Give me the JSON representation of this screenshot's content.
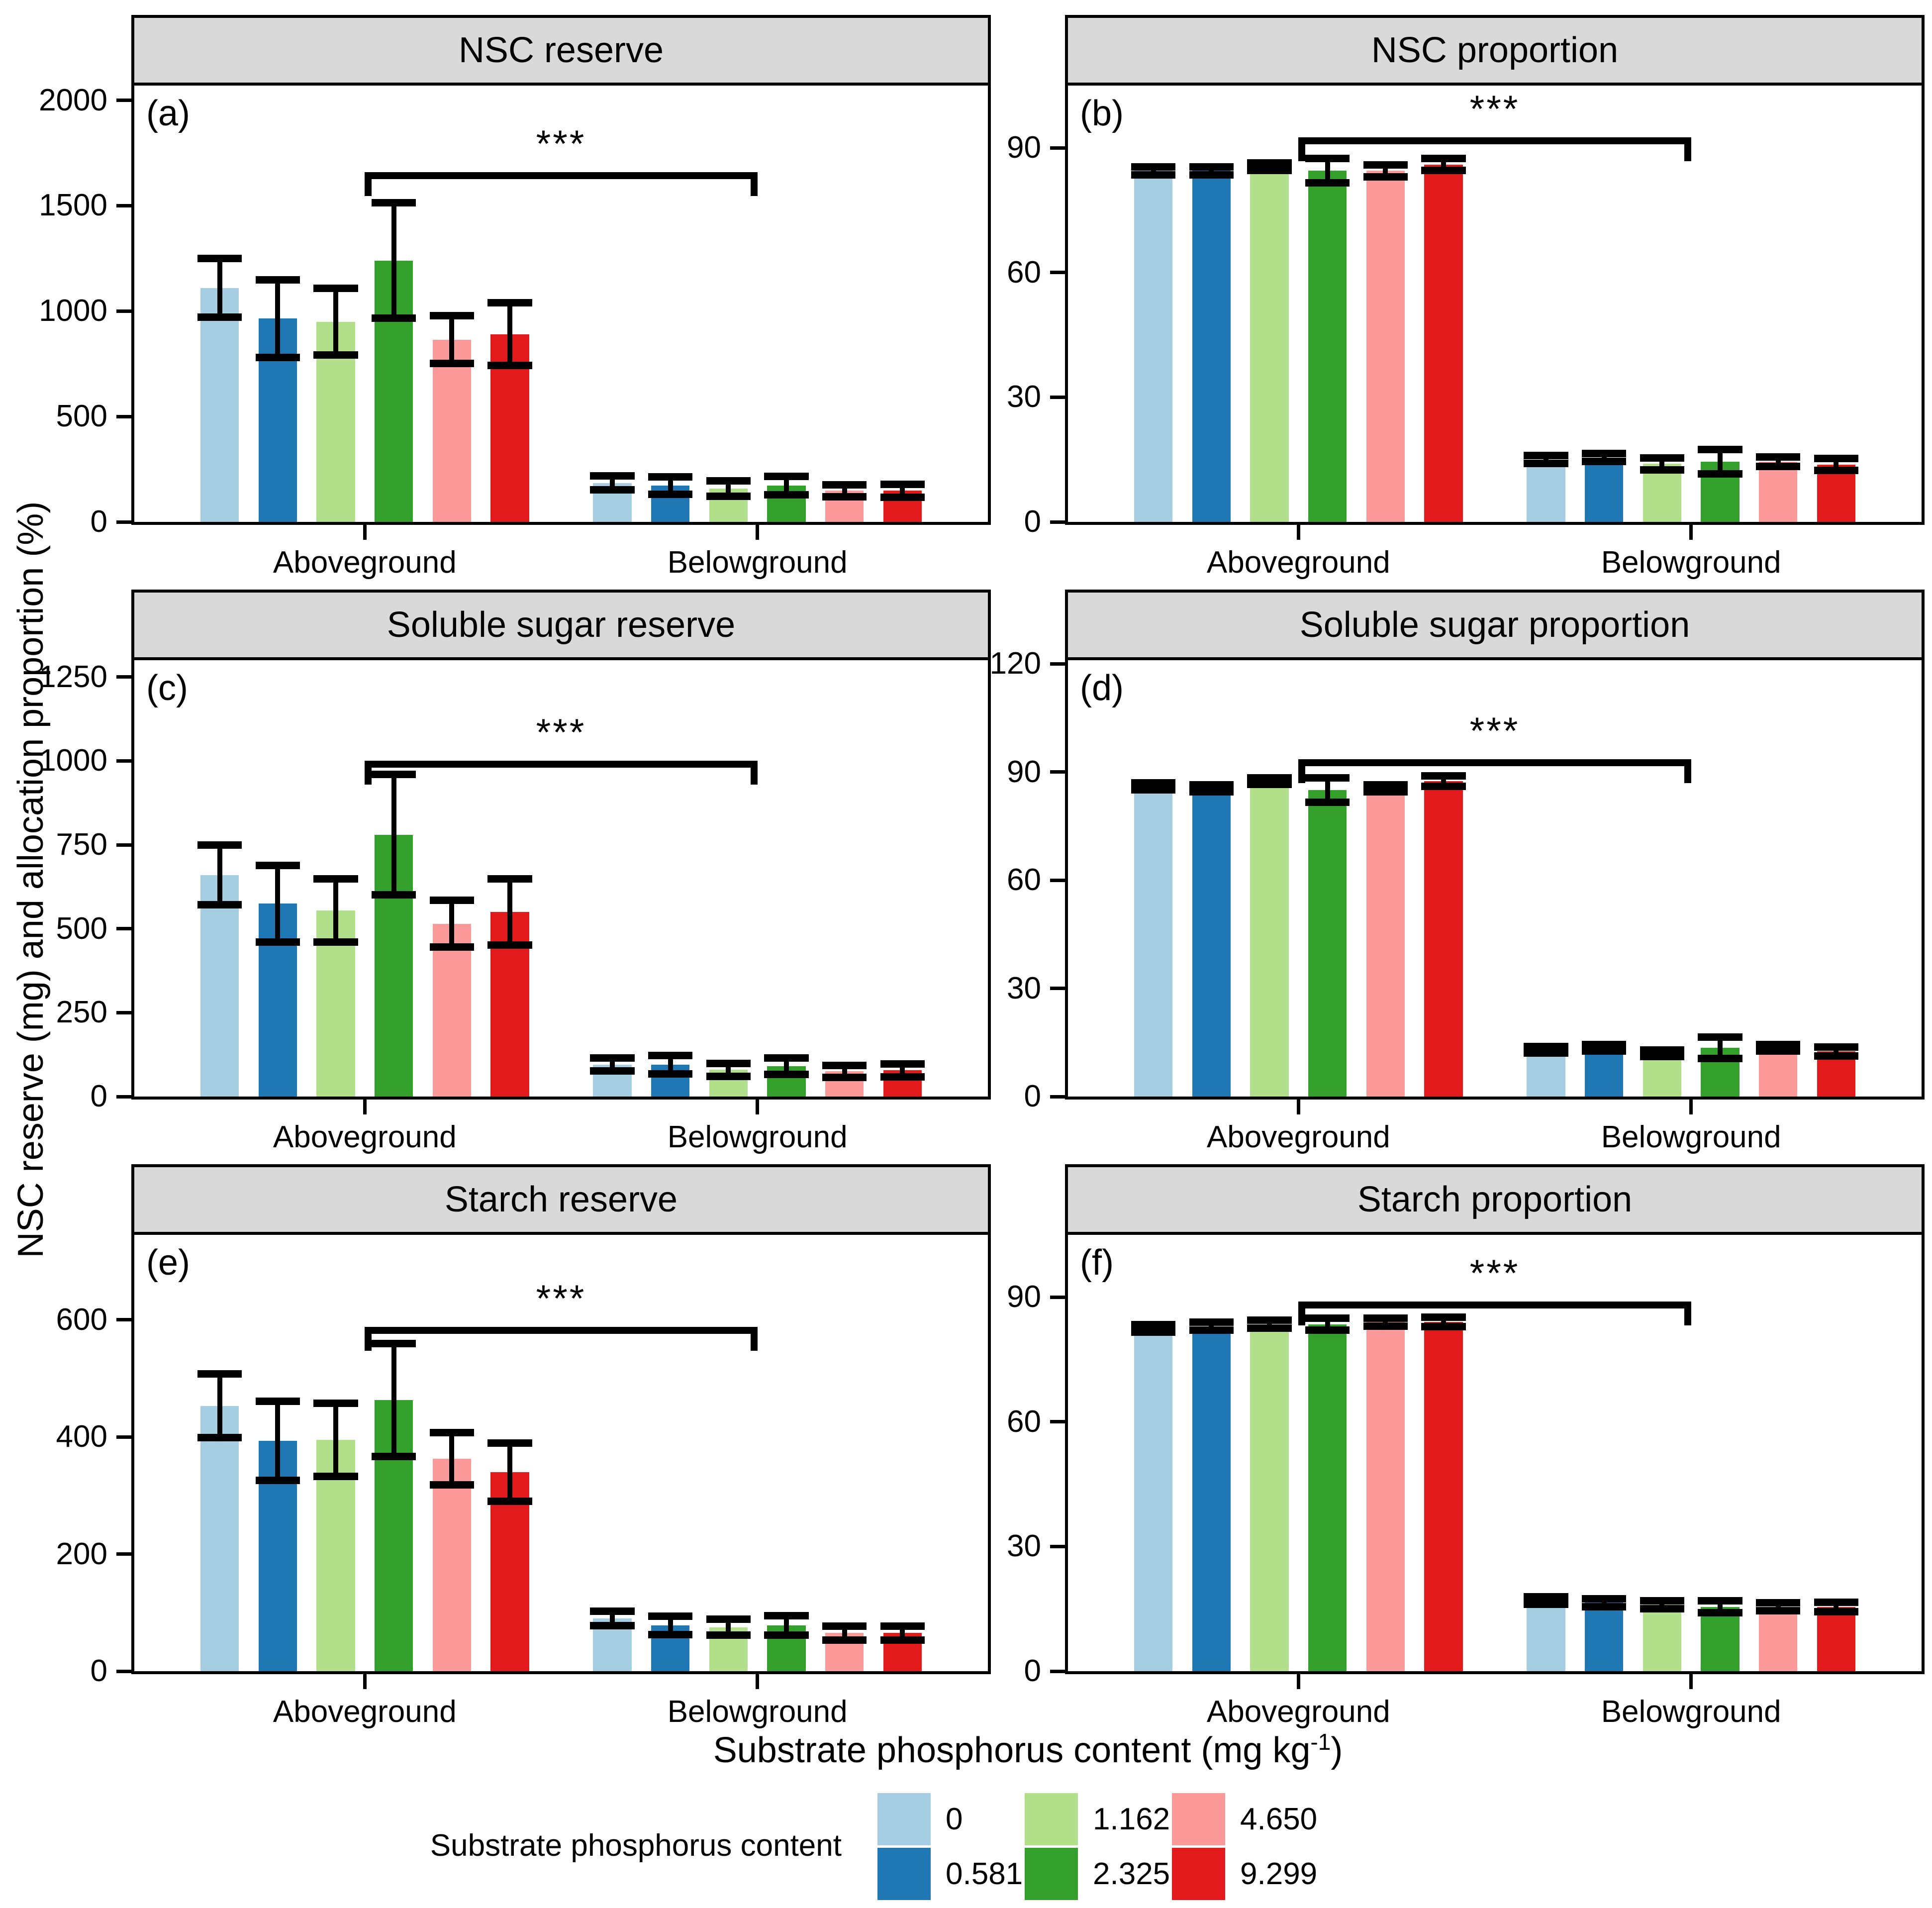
{
  "figure": {
    "description": "Six-panel faceted bar chart of NSC, soluble sugar and starch reserves (mg) and allocation proportions (%) in aboveground and belowground parts under six substrate phosphorus levels"
  },
  "legend": {
    "title": "Substrate phosphorus content"
  },
  "chart_data": {
    "type": "bar",
    "subtype": "grouped-bar-with-error-bars-faceted",
    "x_axis_title": "Substrate phosphorus content (mg kg⁻¹)",
    "x_axis_title_parts": {
      "main": "Substrate phosphorus content (mg kg",
      "sup": "-1",
      "end": ")"
    },
    "y_axis_title": "NSC reserve (mg) and allocation proportion (%)",
    "categories": [
      "Aboveground",
      "Belowground"
    ],
    "series": [
      {
        "label": "0",
        "color": "#A6CEE3"
      },
      {
        "label": "0.581",
        "color": "#1F78B4"
      },
      {
        "label": "1.162",
        "color": "#B2DF8A"
      },
      {
        "label": "2.325",
        "color": "#33A02C"
      },
      {
        "label": "4.650",
        "color": "#FB9A99"
      },
      {
        "label": "9.299",
        "color": "#E31A1C"
      }
    ],
    "grid": false,
    "legend_position": "bottom",
    "panels": [
      {
        "id": "a",
        "panel_label": "(a)",
        "title": "NSC reserve",
        "ylim": [
          0,
          2070
        ],
        "yticks": [
          0,
          500,
          1000,
          1500,
          2000
        ],
        "groups": [
          {
            "category": "Aboveground",
            "values": [
              1110,
              965,
              950,
              1240,
              865,
              890
            ],
            "errors": [
              140,
              185,
              160,
              275,
              115,
              150
            ]
          },
          {
            "category": "Belowground",
            "values": [
              185,
              172,
              158,
              172,
              148,
              148
            ],
            "errors": [
              35,
              42,
              38,
              45,
              30,
              32
            ]
          }
        ],
        "significance": {
          "label": "***",
          "bracket_y": 1660
        }
      },
      {
        "id": "b",
        "panel_label": "(b)",
        "title": "NSC proportion",
        "ylim": [
          0,
          105
        ],
        "yticks": [
          0,
          30,
          60,
          90
        ],
        "groups": [
          {
            "category": "Aboveground",
            "values": [
              84.5,
              84.5,
              85.5,
              84.5,
              84.5,
              86
            ],
            "errors": [
              1,
              1,
              1,
              3,
              1.5,
              1.5
            ]
          },
          {
            "category": "Belowground",
            "values": [
              15,
              15.5,
              14,
              14.5,
              14.5,
              13.8
            ],
            "errors": [
              1,
              1,
              1.5,
              3,
              1.2,
              1.5
            ]
          }
        ],
        "significance": {
          "label": "***",
          "bracket_y": 92.5
        }
      },
      {
        "id": "c",
        "panel_label": "(c)",
        "title": "Soluble sugar reserve",
        "ylim": [
          0,
          1300
        ],
        "yticks": [
          0,
          250,
          500,
          750,
          1000,
          1250
        ],
        "groups": [
          {
            "category": "Aboveground",
            "values": [
              660,
              575,
              555,
              780,
              515,
              550
            ],
            "errors": [
              90,
              115,
              95,
              180,
              70,
              100
            ]
          },
          {
            "category": "Belowground",
            "values": [
              95,
              95,
              80,
              90,
              75,
              78
            ],
            "errors": [
              20,
              28,
              20,
              25,
              18,
              20
            ]
          }
        ],
        "significance": {
          "label": "***",
          "bracket_y": 1000
        }
      },
      {
        "id": "d",
        "panel_label": "(d)",
        "title": "Soluble sugar proportion",
        "ylim": [
          0,
          121
        ],
        "yticks": [
          0,
          30,
          60,
          90,
          120
        ],
        "groups": [
          {
            "category": "Aboveground",
            "values": [
              86,
              85.5,
              87.5,
              85,
              85.5,
              87.5
            ],
            "errors": [
              1,
              1,
              1,
              3.5,
              1,
              1.5
            ]
          },
          {
            "category": "Belowground",
            "values": [
              13,
              13.5,
              12,
              13.5,
              13.5,
              12.5
            ],
            "errors": [
              1,
              1,
              1,
              3,
              1,
              1.3
            ]
          }
        ],
        "significance": {
          "label": "***",
          "bracket_y": 93.5
        }
      },
      {
        "id": "e",
        "panel_label": "(e)",
        "title": "Starch reserve",
        "ylim": [
          0,
          745
        ],
        "yticks": [
          0,
          200,
          400,
          600
        ],
        "groups": [
          {
            "category": "Aboveground",
            "values": [
              453,
              393,
              395,
              463,
              363,
              340
            ],
            "errors": [
              55,
              68,
              63,
              97,
              45,
              50
            ]
          },
          {
            "category": "Belowground",
            "values": [
              90,
              78,
              75,
              78,
              65,
              65
            ],
            "errors": [
              13,
              16,
              14,
              17,
              12,
              12
            ]
          }
        ],
        "significance": {
          "label": "***",
          "bracket_y": 588
        }
      },
      {
        "id": "f",
        "panel_label": "(f)",
        "title": "Starch proportion",
        "ylim": [
          0,
          105
        ],
        "yticks": [
          0,
          30,
          60,
          90
        ],
        "groups": [
          {
            "category": "Aboveground",
            "values": [
              82.5,
              83,
              83.5,
              83.5,
              84,
              84
            ],
            "errors": [
              1,
              1,
              1,
              1.5,
              1,
              1.2
            ]
          },
          {
            "category": "Belowground",
            "values": [
              17,
              16.5,
              16,
              15.5,
              15.5,
              15.5
            ],
            "errors": [
              1,
              1,
              1,
              1.5,
              1,
              1.2
            ]
          }
        ],
        "significance": {
          "label": "***",
          "bracket_y": 89
        }
      }
    ]
  }
}
